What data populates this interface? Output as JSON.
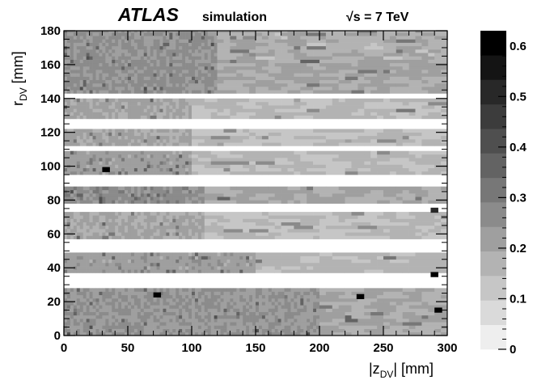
{
  "chart_data": {
    "type": "heatmap",
    "title": "ATLAS",
    "subtitle": "simulation",
    "energy_label": "√s = 7 TeV",
    "xlabel": "|z",
    "xlabel_sub": "DV",
    "xlabel_unit": "| [mm]",
    "ylabel": "r",
    "ylabel_sub": "DV",
    "ylabel_unit": " [mm]",
    "xlim": [
      0,
      300
    ],
    "ylim": [
      0,
      180
    ],
    "x_ticks": [
      0,
      50,
      100,
      150,
      200,
      250,
      300
    ],
    "y_ticks": [
      0,
      20,
      40,
      60,
      80,
      100,
      120,
      140,
      160,
      180
    ],
    "x_tick_labels": [
      "0",
      "50",
      "100",
      "150",
      "200",
      "250",
      "300"
    ],
    "y_tick_labels": [
      "0",
      "20",
      "40",
      "60",
      "80",
      "100",
      "120",
      "140",
      "160",
      "180"
    ],
    "colorbar": {
      "range": [
        0,
        0.63
      ],
      "ticks": [
        0,
        0.1,
        0.2,
        0.3,
        0.4,
        0.5,
        0.6
      ],
      "tick_labels": [
        "0",
        "0.1",
        "0.2",
        "0.3",
        "0.4",
        "0.5",
        "0.6"
      ],
      "levels": 13
    },
    "white_gaps_r": [
      [
        28,
        37
      ],
      [
        48,
        57
      ],
      [
        73,
        78
      ],
      [
        88,
        95
      ],
      [
        108,
        112
      ],
      [
        122,
        128
      ],
      [
        140,
        143
      ]
    ],
    "bands": [
      {
        "r": [
          0,
          27
        ],
        "x_edge": 200,
        "inner": 0.24,
        "outer": 0.2,
        "var": 0.04
      },
      {
        "r": [
          37,
          48
        ],
        "x_edge": 150,
        "inner": 0.22,
        "outer": 0.16,
        "var": 0.03
      },
      {
        "r": [
          57,
          73
        ],
        "x_edge": 110,
        "inner": 0.2,
        "outer": 0.14,
        "var": 0.03
      },
      {
        "r": [
          78,
          88
        ],
        "x_edge": 110,
        "inner": 0.26,
        "outer": 0.2,
        "var": 0.04
      },
      {
        "r": [
          95,
          108
        ],
        "x_edge": 100,
        "inner": 0.22,
        "outer": 0.15,
        "var": 0.03
      },
      {
        "r": [
          112,
          122
        ],
        "x_edge": 100,
        "inner": 0.2,
        "outer": 0.14,
        "var": 0.03
      },
      {
        "r": [
          128,
          140
        ],
        "x_edge": 100,
        "inner": 0.2,
        "outer": 0.15,
        "var": 0.03
      },
      {
        "r": [
          143,
          163
        ],
        "x_edge": 120,
        "inner": 0.25,
        "outer": 0.2,
        "var": 0.03
      },
      {
        "r": [
          163,
          180
        ],
        "x_edge": 120,
        "inner": 0.25,
        "outer": 0.18,
        "var": 0.04
      }
    ],
    "hotspots": [
      {
        "x": 33,
        "r": 98,
        "value": 0.62
      },
      {
        "x": 73,
        "r": 24,
        "value": 0.62
      },
      {
        "x": 232,
        "r": 23,
        "value": 0.62
      },
      {
        "x": 293,
        "r": 15,
        "value": 0.62
      },
      {
        "x": 290,
        "r": 36,
        "value": 0.62
      },
      {
        "x": 290,
        "r": 74,
        "value": 0.5
      }
    ]
  }
}
